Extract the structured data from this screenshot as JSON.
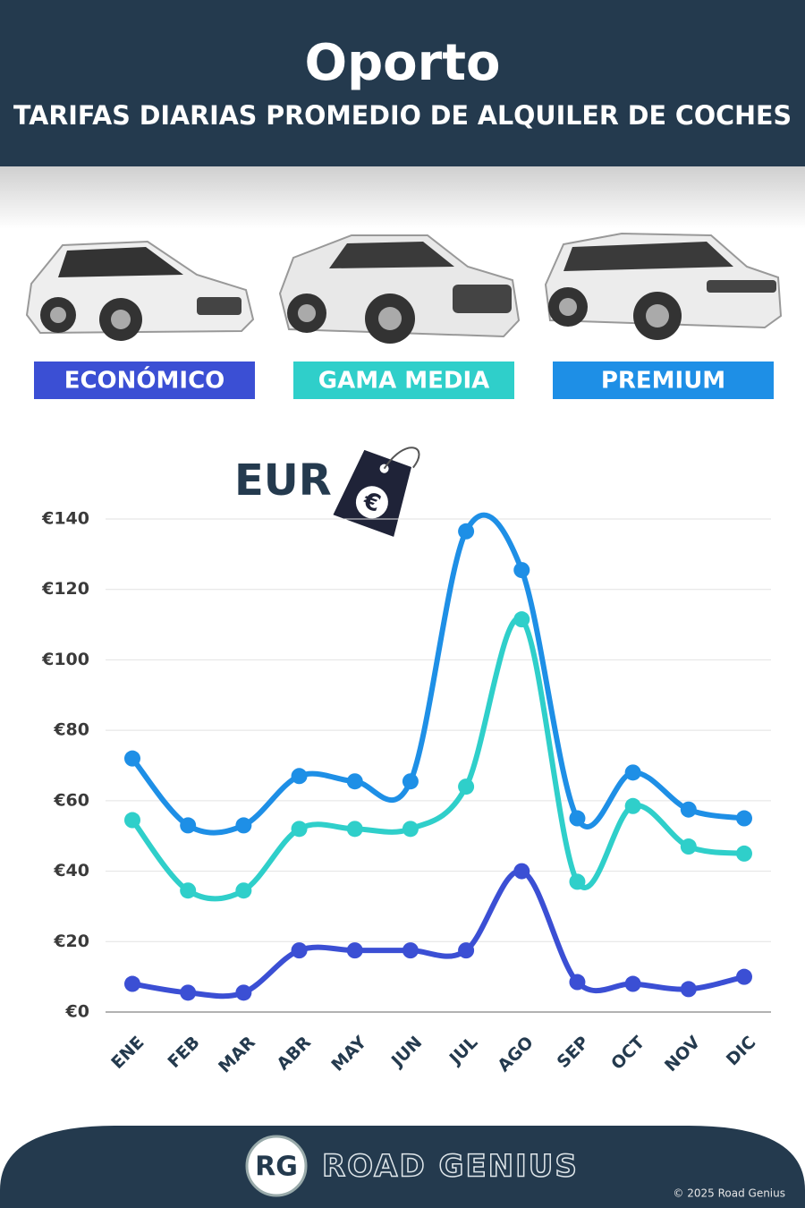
{
  "chart_data": {
    "type": "line",
    "title": "Oporto",
    "subtitle": "TARIFAS DIARIAS PROMEDIO DE ALQUILER DE COCHES",
    "unit_label": "EUR",
    "unit_tag": "€",
    "categories": [
      "ENE",
      "FEB",
      "MAR",
      "ABR",
      "MAY",
      "JUN",
      "JUL",
      "AGO",
      "SEP",
      "OCT",
      "NOV",
      "DIC"
    ],
    "series": [
      {
        "name": "ECONÓMICO",
        "color": "#3b4fd4",
        "values": [
          8,
          5.5,
          5.5,
          17.5,
          17.5,
          17.5,
          17.5,
          40,
          8.5,
          8,
          6.5,
          10
        ]
      },
      {
        "name": "GAMA MEDIA",
        "color": "#2fcfca",
        "values": [
          54.5,
          34.5,
          34.5,
          52,
          52,
          52,
          64,
          111.5,
          37,
          58.5,
          47,
          45
        ]
      },
      {
        "name": "PREMIUM",
        "color": "#1e8fe6",
        "values": [
          72,
          53,
          53,
          67,
          65.5,
          65.5,
          136.5,
          125.5,
          55,
          68,
          57.5,
          55
        ]
      }
    ],
    "ylim": [
      0,
      140
    ],
    "yticks": [
      {
        "value": 0,
        "label": "€0"
      },
      {
        "value": 20,
        "label": "€20"
      },
      {
        "value": 40,
        "label": "€40"
      },
      {
        "value": 60,
        "label": "€60"
      },
      {
        "value": 80,
        "label": "€80"
      },
      {
        "value": 100,
        "label": "€100"
      },
      {
        "value": 120,
        "label": "€120"
      },
      {
        "value": 140,
        "label": "€140"
      }
    ],
    "grid": true
  },
  "footer": {
    "logo": "RG",
    "brand": "ROAD GENIUS",
    "copyright": "© 2025 Road Genius"
  }
}
